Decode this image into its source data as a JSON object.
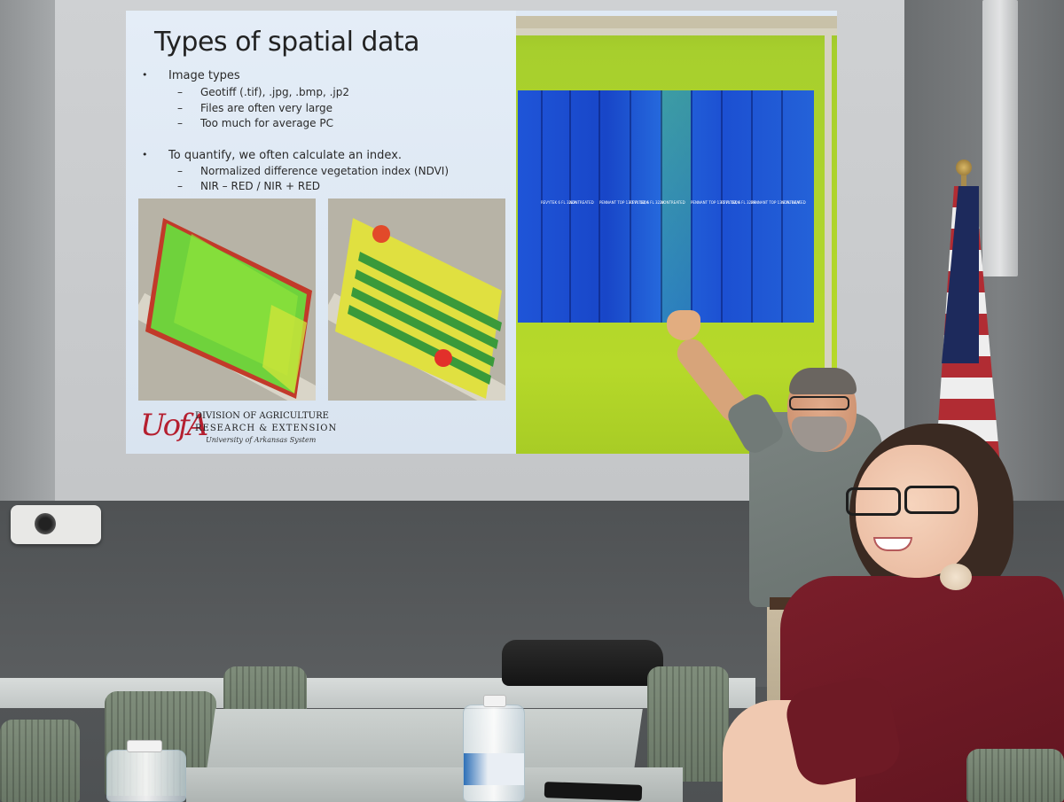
{
  "slide": {
    "title": "Types of spatial data",
    "bullets": [
      {
        "text": "Image types",
        "subs": [
          "Geotiff (.tif), .jpg, .bmp, .jp2",
          "Files are often very large",
          "Too much for average PC"
        ]
      },
      {
        "text": "To quantify, we often calculate an index.",
        "subs": [
          "Normalized difference vegetation index (NDVI)",
          "NIR – RED / NIR + RED"
        ]
      }
    ],
    "bullet_glyph": "•",
    "dash_glyph": "–",
    "logo": {
      "mark": "UofA",
      "line1": "DIVISION OF AGRICULTURE",
      "line2": "RESEARCH & EXTENSION",
      "line3": "University of Arkansas System"
    },
    "plot_labels": [
      "REVYTEK 6 FL 322A",
      "NONTREATED",
      "PENNANT TOP 13.7 FL OZ/A",
      "REVYTEK 6 FL 322A",
      "NONTREATED",
      "PENNANT TOP 13.7 FL OZ/A",
      "REVYTEK 6 FL 322A",
      "PENNANT TOP 13.7 FL OZ/A",
      "NONTREATED"
    ]
  },
  "colors": {
    "slide_bg": "#dfe9f4",
    "ndvi_blue": "#1f55d8",
    "ndvi_green": "#b6d92a",
    "logo_red": "#b51f2f",
    "shirt_maroon": "#7a1e2a"
  }
}
